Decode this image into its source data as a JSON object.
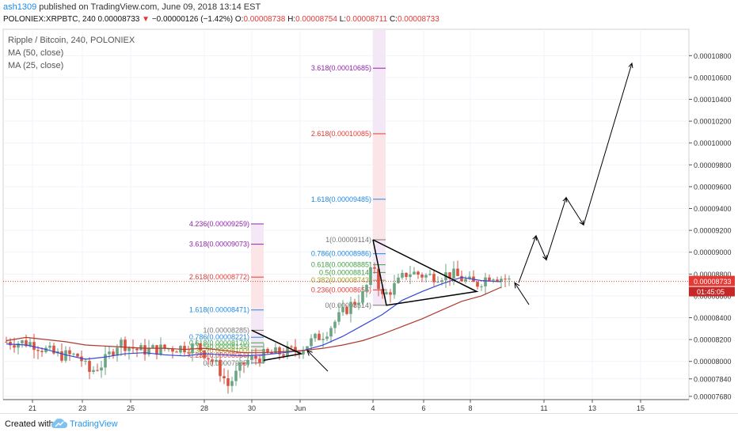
{
  "header": {
    "author": "ash1309",
    "published_text": "published on TradingView.com, June 09, 2018 13:14 EST"
  },
  "symbol_line": {
    "symbol": "POLONIEX:XRPBTC, 240",
    "last": "0.00008733",
    "change_arrow": "▼",
    "change": "−0.00000126 (−1.42%)",
    "o_label": "O:",
    "o_value": "0.00008738",
    "h_label": "H:",
    "h_value": "0.00008754",
    "l_label": "L:",
    "l_value": "0.00008711",
    "c_label": "C:",
    "c_value": "0.00008733"
  },
  "legend": {
    "title": "Ripple / Bitcoin, 240, POLONIEX",
    "ma50": "MA (50, close)",
    "ma25": "MA (25, close)"
  },
  "price_axis": {
    "ticks": [
      "0.00010800",
      "0.00010600",
      "0.00010400",
      "0.00010200",
      "0.00010000",
      "0.00009800",
      "0.00009600",
      "0.00009400",
      "0.00009200",
      "0.00009000",
      "0.00008800",
      "0.00008600",
      "0.00008400",
      "0.00008200",
      "0.00008000",
      "0.00007840",
      "0.00007680"
    ],
    "last_price_label": "0.00008733",
    "countdown_label": "01:45:05"
  },
  "time_axis": {
    "ticks": [
      "21",
      "23",
      "25",
      "28",
      "30",
      "Jun",
      "4",
      "6",
      "8",
      "11",
      "13",
      "15"
    ]
  },
  "footer": {
    "created_with": "Created with",
    "brand": "TradingView"
  },
  "colors": {
    "candle_up": "#6ba583",
    "candle_down": "#d75442",
    "ma_blue": "#3248d8",
    "ma_red": "#b03a2e",
    "last_price_line": "#e53935",
    "fib_red": "#e53935",
    "fib_purple": "#8e24aa",
    "fib_blue": "#1e88e5",
    "fib_green": "#43a047",
    "fib_gray": "#777777"
  },
  "chart_data": {
    "type": "candlestick",
    "title": "Ripple / Bitcoin, 240, POLONIEX",
    "y_range": [
      7.62e-05,
      0.0001092
    ],
    "x_ticks": [
      "21",
      "23",
      "25",
      "28",
      "30",
      "Jun",
      "4",
      "6",
      "8",
      "11",
      "13",
      "15"
    ],
    "moving_averages": [
      {
        "name": "MA (50, close)",
        "color": "#3248d8",
        "points": [
          [
            0,
            8.16e-05
          ],
          [
            5,
            8.15e-05
          ],
          [
            10,
            8.11e-05
          ],
          [
            15,
            8.06e-05
          ],
          [
            20,
            8.02e-05
          ],
          [
            25,
            8.04e-05
          ],
          [
            30,
            8.07e-05
          ],
          [
            35,
            8.08e-05
          ],
          [
            40,
            8.06e-05
          ],
          [
            45,
            8.05e-05
          ],
          [
            50,
            8.07e-05
          ],
          [
            55,
            8.06e-05
          ],
          [
            60,
            8.05e-05
          ],
          [
            65,
            8.06e-05
          ],
          [
            70,
            8.08e-05
          ],
          [
            75,
            8.1e-05
          ],
          [
            80,
            8.15e-05
          ],
          [
            85,
            8.23e-05
          ],
          [
            90,
            8.33e-05
          ],
          [
            95,
            8.43e-05
          ],
          [
            100,
            8.56e-05
          ],
          [
            105,
            8.64e-05
          ],
          [
            110,
            8.71e-05
          ],
          [
            115,
            8.77e-05
          ],
          [
            120,
            8.74e-05
          ],
          [
            125,
            8.73e-05
          ]
        ]
      },
      {
        "name": "MA (25, close)",
        "color": "#b03a2e",
        "points": [
          [
            0,
            8.19e-05
          ],
          [
            5,
            8.22e-05
          ],
          [
            10,
            8.2e-05
          ],
          [
            15,
            8.18e-05
          ],
          [
            20,
            8.15e-05
          ],
          [
            25,
            8.14e-05
          ],
          [
            30,
            8.13e-05
          ],
          [
            35,
            8.12e-05
          ],
          [
            40,
            8.12e-05
          ],
          [
            45,
            8.11e-05
          ],
          [
            50,
            8.12e-05
          ],
          [
            55,
            8.1e-05
          ],
          [
            60,
            8.08e-05
          ],
          [
            65,
            8.08e-05
          ],
          [
            70,
            8.09e-05
          ],
          [
            75,
            8.1e-05
          ],
          [
            80,
            8.12e-05
          ],
          [
            85,
            8.15e-05
          ],
          [
            90,
            8.19e-05
          ],
          [
            95,
            8.25e-05
          ],
          [
            100,
            8.32e-05
          ],
          [
            105,
            8.39e-05
          ],
          [
            110,
            8.47e-05
          ],
          [
            115,
            8.55e-05
          ],
          [
            120,
            8.6e-05
          ],
          [
            125,
            8.68e-05
          ]
        ]
      }
    ],
    "fib_extensions": [
      {
        "levels": [
          {
            "ratio": "4.236",
            "label": "4.236(0.00009259)",
            "value": 9.259e-05,
            "color": "#8e24aa"
          },
          {
            "ratio": "3.618",
            "label": "3.618(0.00009073)",
            "value": 9.073e-05,
            "color": "#8e24aa"
          },
          {
            "ratio": "2.618",
            "label": "2.618(0.00008772)",
            "value": 8.772e-05,
            "color": "#e53935"
          },
          {
            "ratio": "1.618",
            "label": "1.618(0.00008471)",
            "value": 8.471e-05,
            "color": "#1e88e5"
          },
          {
            "ratio": "1",
            "label": "1(0.00008285)",
            "value": 8.285e-05,
            "color": "#777777"
          },
          {
            "ratio": "0.786",
            "label": "0.786(0.00008221)",
            "value": 8.221e-05,
            "color": "#1e88e5"
          },
          {
            "ratio": "0.618",
            "label": "0.618(0.00008170)",
            "value": 8.17e-05,
            "color": "#43a047"
          },
          {
            "ratio": "0.5",
            "label": "0.5(0.00008135)",
            "value": 8.135e-05,
            "color": "#43a047"
          },
          {
            "ratio": "0.382",
            "label": "0.382(0.00008100)",
            "value": 8.1e-05,
            "color": "#9e9d24"
          },
          {
            "ratio": "0.236",
            "label": "0.236(0.00008056)",
            "value": 8.056e-05,
            "color": "#e53935"
          },
          {
            "ratio": "0",
            "label": "0(0.00007985)",
            "value": 7.985e-05,
            "color": "#777777"
          }
        ]
      },
      {
        "levels": [
          {
            "ratio": "3.618",
            "label": "3.618(0.00010685)",
            "value": 0.00010685,
            "color": "#8e24aa"
          },
          {
            "ratio": "2.618",
            "label": "2.618(0.00010085)",
            "value": 0.00010085,
            "color": "#e53935"
          },
          {
            "ratio": "1.618",
            "label": "1.618(0.00009485)",
            "value": 9.485e-05,
            "color": "#1e88e5"
          },
          {
            "ratio": "1",
            "label": "1(0.00009114)",
            "value": 9.114e-05,
            "color": "#777777"
          },
          {
            "ratio": "0.786",
            "label": "0.786(0.00008986)",
            "value": 8.986e-05,
            "color": "#1e88e5"
          },
          {
            "ratio": "0.618",
            "label": "0.618(0.00008885)",
            "value": 8.885e-05,
            "color": "#43a047"
          },
          {
            "ratio": "0.5",
            "label": "0.5(0.00008814)",
            "value": 8.814e-05,
            "color": "#43a047"
          },
          {
            "ratio": "0.382",
            "label": "0.382(0.00008743)",
            "value": 8.743e-05,
            "color": "#9e9d24"
          },
          {
            "ratio": "0.236",
            "label": "0.236(0.00008655)",
            "value": 8.655e-05,
            "color": "#e53935"
          },
          {
            "ratio": "0",
            "label": "0(0.00008514)",
            "value": 8.514e-05,
            "color": "#777777"
          }
        ]
      }
    ],
    "projection_path": [
      [
        8.72e-05
      ],
      [
        9.15e-05
      ],
      [
        8.93e-05
      ],
      [
        9.5e-05
      ],
      [
        9.25e-05
      ],
      [
        0.0001073
      ]
    ],
    "last_price": 8.733e-05
  }
}
